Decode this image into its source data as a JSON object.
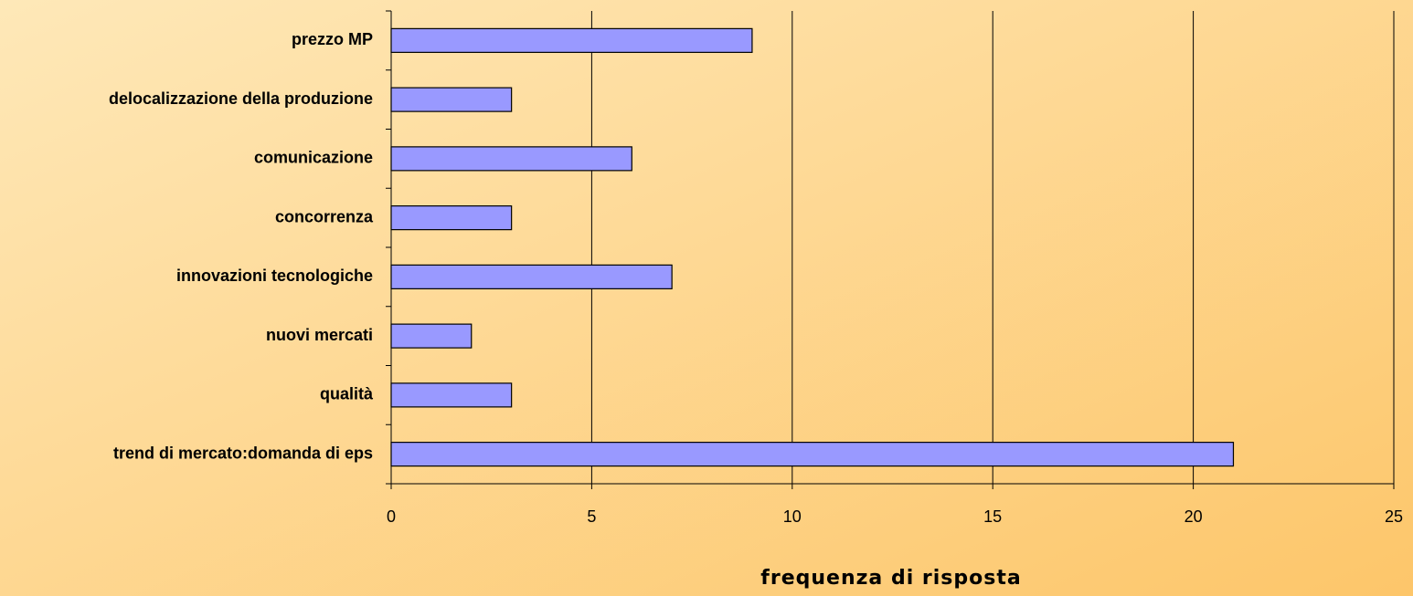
{
  "chart_data": {
    "type": "bar",
    "orientation": "horizontal",
    "xlabel": "frequenza di risposta",
    "categories": [
      "prezzo MP",
      "delocalizzazione della produzione",
      "comunicazione",
      "concorrenza",
      "innovazioni tecnologiche",
      "nuovi mercati",
      "qualità",
      "trend di mercato:domanda di eps"
    ],
    "values": [
      9,
      3,
      6,
      3,
      7,
      2,
      3,
      21
    ],
    "color": "#9999ff",
    "xlim": [
      0,
      25
    ],
    "xticks": [
      0,
      5,
      10,
      15,
      20,
      25
    ],
    "grid": true
  }
}
